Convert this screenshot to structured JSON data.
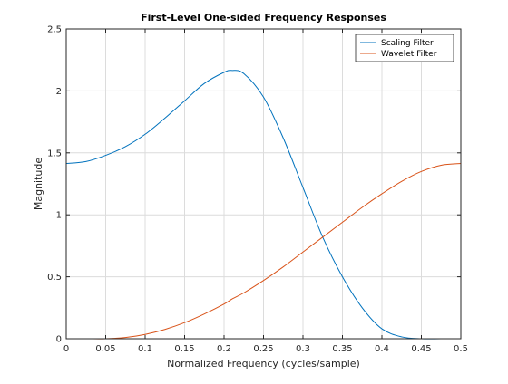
{
  "chart_data": {
    "type": "line",
    "title": "First-Level One-sided Frequency Responses",
    "xlabel": "Normalized Frequency (cycles/sample)",
    "ylabel": "Magnitude",
    "xlim": [
      0,
      0.5
    ],
    "ylim": [
      0,
      2.5
    ],
    "xticks": [
      "0",
      "0.05",
      "0.1",
      "0.15",
      "0.2",
      "0.25",
      "0.3",
      "0.35",
      "0.4",
      "0.45",
      "0.5"
    ],
    "yticks": [
      "0",
      "0.5",
      "1",
      "1.5",
      "2",
      "2.5"
    ],
    "grid": true,
    "legend_position": "top-right",
    "x": [
      0,
      0.025,
      0.05,
      0.075,
      0.1,
      0.125,
      0.15,
      0.175,
      0.2,
      0.21,
      0.225,
      0.25,
      0.275,
      0.3,
      0.325,
      0.35,
      0.375,
      0.4,
      0.425,
      0.45,
      0.475,
      0.5
    ],
    "series": [
      {
        "name": "Scaling Filter",
        "color": "#0072BD",
        "values": [
          1.414,
          1.43,
          1.48,
          1.55,
          1.65,
          1.78,
          1.92,
          2.06,
          2.15,
          2.165,
          2.14,
          1.95,
          1.62,
          1.22,
          0.82,
          0.5,
          0.25,
          0.08,
          0.015,
          0.0,
          0.0,
          0.0
        ]
      },
      {
        "name": "Wavelet Filter",
        "color": "#D95319",
        "values": [
          0.0,
          0.0,
          0.0,
          0.01,
          0.035,
          0.075,
          0.13,
          0.2,
          0.28,
          0.32,
          0.37,
          0.47,
          0.58,
          0.7,
          0.82,
          0.94,
          1.06,
          1.17,
          1.27,
          1.35,
          1.4,
          1.414
        ]
      }
    ]
  }
}
